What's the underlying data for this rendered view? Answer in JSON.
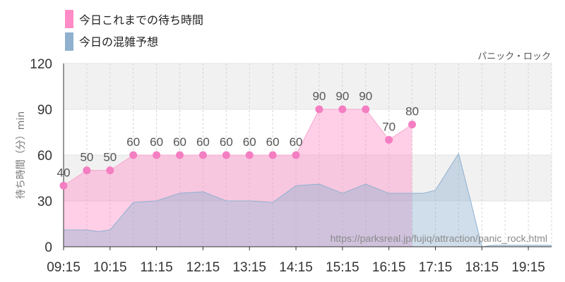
{
  "chart_data": {
    "type": "area",
    "subtitle": "パニック・ロック",
    "ylabel": "待ち時間（分）min",
    "ylim": [
      0,
      120
    ],
    "yticks": [
      0,
      30,
      60,
      90,
      120
    ],
    "xlim": [
      "09:15",
      "19:45"
    ],
    "xtick_labels": [
      "09:15",
      "10:15",
      "11:15",
      "12:15",
      "13:15",
      "14:15",
      "15:15",
      "16:15",
      "17:15",
      "18:15",
      "19:15"
    ],
    "grid": true,
    "legend_position": "top-left",
    "watermark": "https://parksreal.jp/fujiq/attraction/panic_rock.html",
    "series": [
      {
        "name": "今日これまでの待ち時間",
        "color": "#ff8cc6",
        "x": [
          "09:15",
          "09:45",
          "10:15",
          "10:45",
          "11:15",
          "11:45",
          "12:15",
          "12:45",
          "13:15",
          "13:45",
          "14:15",
          "14:45",
          "15:15",
          "15:45",
          "16:15",
          "16:45"
        ],
        "values": [
          40,
          50,
          50,
          60,
          60,
          60,
          60,
          60,
          60,
          60,
          60,
          90,
          90,
          90,
          70,
          80
        ],
        "labels": [
          "40",
          "50",
          "50",
          "60",
          "60",
          "60",
          "60",
          "60",
          "60",
          "60",
          "60",
          "90",
          "90",
          "90",
          "70",
          "80"
        ]
      },
      {
        "name": "今日の混雑予想",
        "color": "#8fb0cf",
        "x": [
          "09:15",
          "09:45",
          "10:00",
          "10:15",
          "10:45",
          "11:15",
          "11:45",
          "12:15",
          "12:45",
          "13:15",
          "13:45",
          "14:15",
          "14:45",
          "15:15",
          "15:45",
          "16:15",
          "16:45",
          "17:00",
          "17:15",
          "17:45",
          "18:00",
          "18:15",
          "18:30",
          "19:45"
        ],
        "values": [
          11,
          11,
          10,
          11,
          29,
          30,
          35,
          36,
          30,
          30,
          29,
          40,
          41,
          35,
          41,
          35,
          35,
          35,
          37,
          61,
          31,
          0,
          1,
          1
        ]
      }
    ]
  }
}
